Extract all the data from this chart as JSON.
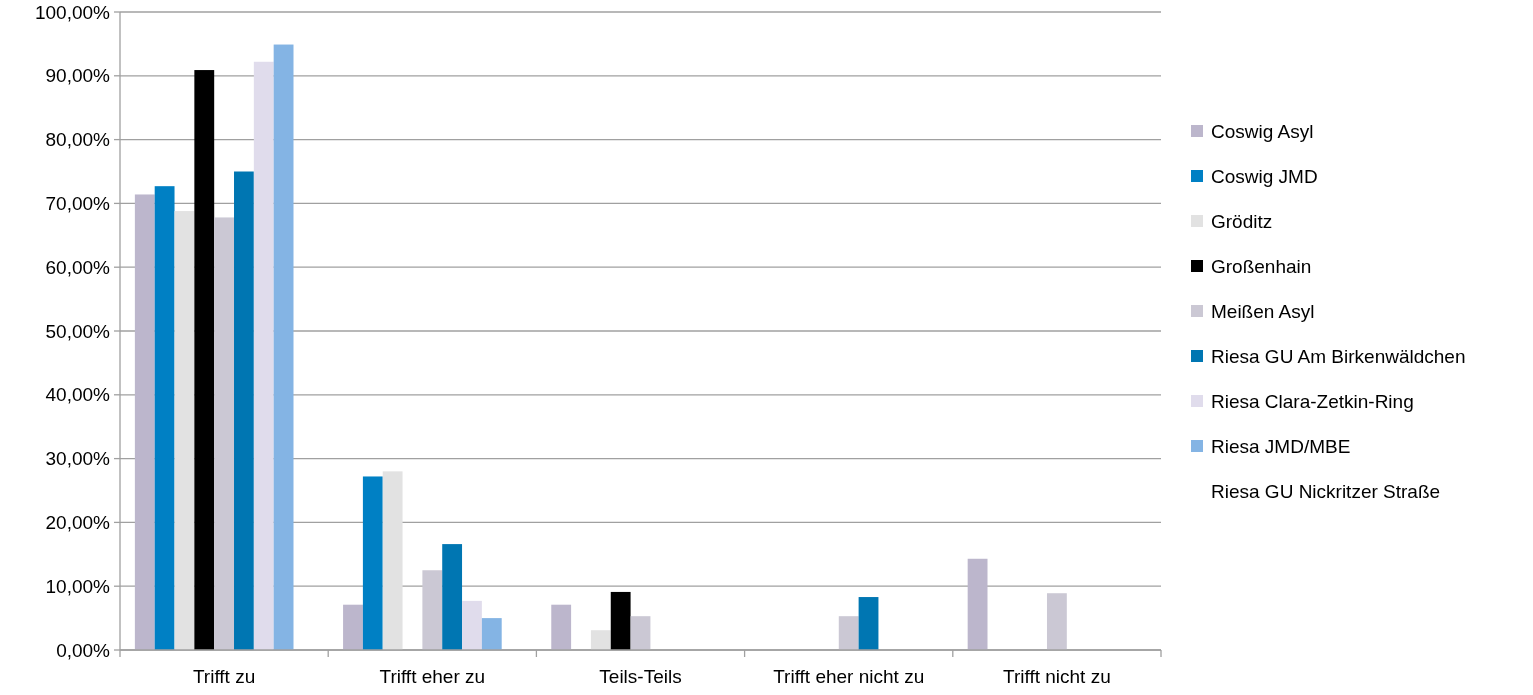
{
  "chart_data": {
    "type": "bar",
    "categories": [
      "Trifft zu",
      "Trifft eher zu",
      "Teils-Teils",
      "Trifft eher nicht zu",
      "Trifft nicht zu"
    ],
    "series": [
      {
        "name": "Coswig Asyl",
        "color": "#bcb6cc",
        "values": [
          71.4,
          7.1,
          7.1,
          0,
          14.3
        ]
      },
      {
        "name": "Coswig JMD",
        "color": "#0080c4",
        "values": [
          72.7,
          27.2,
          0,
          0,
          0
        ]
      },
      {
        "name": "Gröditz",
        "color": "#e2e2e2",
        "values": [
          68.8,
          28.0,
          3.1,
          0,
          0
        ]
      },
      {
        "name": "Großenhain",
        "color": "#000000",
        "values": [
          90.9,
          0,
          9.1,
          0,
          0
        ]
      },
      {
        "name": "Meißen Asyl",
        "color": "#cbc8d4",
        "values": [
          67.8,
          12.5,
          5.3,
          5.3,
          8.9
        ]
      },
      {
        "name": "Riesa GU Am Birkenwäldchen",
        "color": "#0076b2",
        "values": [
          75.0,
          16.6,
          0,
          8.3,
          0
        ]
      },
      {
        "name": "Riesa Clara-Zetkin-Ring",
        "color": "#e0dcec",
        "values": [
          92.2,
          7.7,
          0,
          0,
          0
        ]
      },
      {
        "name": "Riesa JMD/MBE",
        "color": "#84b4e4",
        "values": [
          94.9,
          5.0,
          0,
          0,
          0
        ]
      },
      {
        "name": "Riesa GU Nickritzer Straße",
        "values": [
          null,
          null,
          null,
          null,
          null
        ]
      }
    ],
    "ylim": [
      0,
      100
    ],
    "yticks": [
      {
        "value": 0,
        "label": "0,00%"
      },
      {
        "value": 10,
        "label": "10,00%"
      },
      {
        "value": 20,
        "label": "20,00%"
      },
      {
        "value": 30,
        "label": "30,00%"
      },
      {
        "value": 40,
        "label": "40,00%"
      },
      {
        "value": 50,
        "label": "50,00%"
      },
      {
        "value": 60,
        "label": "60,00%"
      },
      {
        "value": 70,
        "label": "70,00%"
      },
      {
        "value": 80,
        "label": "80,00%"
      },
      {
        "value": 90,
        "label": "90,00%"
      },
      {
        "value": 100,
        "label": "100,00%"
      }
    ],
    "grid": "y",
    "legend": "right"
  }
}
